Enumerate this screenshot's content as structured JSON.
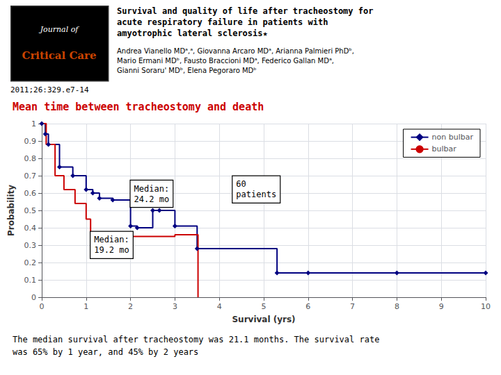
{
  "chart_data": {
    "type": "step",
    "title": "Mean time between tracheostomy and death",
    "title_color": "#CC0000",
    "journal": [
      "Journal of",
      "Critical Care"
    ],
    "journal_color": "#CC4400",
    "logo_color": "#000000",
    "paper_title": "Survival and quality of life after tracheostomy for\nacute respiratory failure in patients with\namyotrophic lateral sclerosis★",
    "authors": "Andrea Vianello MDᵃ,ᵃ, Giovanna Arcaro MDᵃ, Arianna Palmieri PhDᵇ,\nMario Ermani MDᵇ, Fausto Braccioni MDᵃ, Federico Gallan MDᵃ,\nGianni Soraru' MDᵇ, Elena Pegoraro MDᵇ",
    "citation": "2011;26:329.e7-14",
    "footer": "The median survival after tracheostomy was 21.1 months. The survival rate\nwas 65% by 1 year, and 45% by 2 years",
    "xlabel": "Survival (yrs)",
    "ylabel": "Probability",
    "xlim": [
      0,
      10
    ],
    "ylim": [
      0,
      1.0
    ],
    "xticks": [
      0,
      1,
      2,
      3,
      4,
      5,
      6,
      7,
      8,
      9,
      10
    ],
    "yticks": [
      0,
      0.1,
      0.2,
      0.3,
      0.4,
      0.5,
      0.6,
      0.7,
      0.8,
      0.9,
      1
    ],
    "grid": true,
    "legend": "upper right",
    "series": [
      {
        "name": "non bulbar",
        "color": "#000080",
        "marker": "diamond",
        "line_style": "solid",
        "x": [
          0,
          0.08,
          0.15,
          0.4,
          0.7,
          1.0,
          1.15,
          1.3,
          1.6,
          2.0,
          2.15,
          2.5,
          2.65,
          3.0,
          3.5,
          5.3,
          6.0,
          8.0,
          10.0
        ],
        "values": [
          1.0,
          0.94,
          0.88,
          0.75,
          0.7,
          0.62,
          0.6,
          0.57,
          0.56,
          0.41,
          0.4,
          0.5,
          0.5,
          0.41,
          0.28,
          0.14,
          0.14,
          0.14,
          0.14
        ]
      },
      {
        "name": "bulbar",
        "color": "#CC0000",
        "marker": "none",
        "line_style": "solid",
        "x": [
          0,
          0.1,
          0.3,
          0.5,
          0.75,
          1.0,
          1.1,
          1.5,
          2.0,
          2.5,
          3.0,
          3.5,
          3.52
        ],
        "values": [
          1.0,
          0.88,
          0.7,
          0.62,
          0.54,
          0.45,
          0.36,
          0.36,
          0.35,
          0.35,
          0.36,
          0.36,
          0.0
        ]
      }
    ],
    "annotations": [
      {
        "text": "Median:\n24.2 mo",
        "x": 2.0,
        "y": 0.52
      },
      {
        "text": "Median:\n19.2 mo",
        "x": 1.1,
        "y": 0.225
      },
      {
        "text": "60\npatients",
        "x": 4.3,
        "y": 0.545
      }
    ]
  }
}
